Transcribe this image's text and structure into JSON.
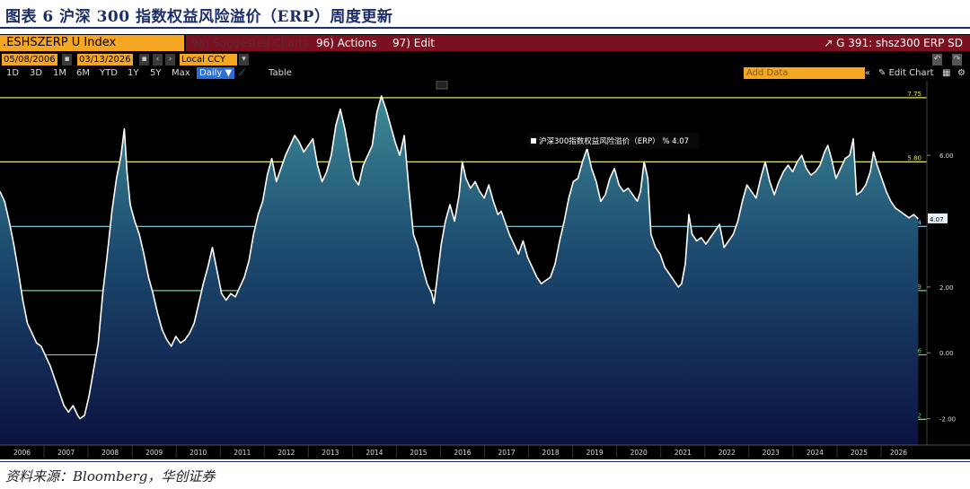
{
  "caption": "图表 6  沪深 300 指数权益风险溢价（ERP）周度更新",
  "source": "资料来源：Bloomberg，华创证券",
  "toolbar": {
    "ticker": ".ESHSZERP U Index",
    "suggested": "96) Suggested Charts",
    "actions": "96) Actions",
    "edit": "97) Edit",
    "right_title": "G 391: shsz300 ERP SD",
    "start_date": "05/08/2006",
    "end_date": "03/13/2026",
    "currency": "Local CCY",
    "ranges": [
      "1D",
      "3D",
      "1M",
      "6M",
      "YTD",
      "1Y",
      "5Y",
      "Max"
    ],
    "frequency": "Daily ▼",
    "table": "Table",
    "add_data": "Add Data",
    "edit_chart": "Edit Chart"
  },
  "colors": {
    "accent": "#f5a623",
    "bar_red": "#7a1020",
    "line_white": "#ffffff",
    "mean_line": "#87d4f0",
    "sd_yellow": "#e6e65a",
    "sd_green": "#6fdc6f",
    "caption_blue": "#1c2d6b"
  },
  "chart_data": {
    "type": "area",
    "title": "",
    "legend": "沪深300指数权益风险溢价（ERP） % 4.07",
    "legend_placement": "top-center",
    "last_value": "4.07",
    "ylim": [
      -2.8,
      8.1
    ],
    "xlim": [
      2006.0,
      2026.25
    ],
    "x_ticks": [
      "2006",
      "2007",
      "2008",
      "2009",
      "2010",
      "2011",
      "2012",
      "2013",
      "2014",
      "2015",
      "2016",
      "2017",
      "2018",
      "2019",
      "2020",
      "2021",
      "2022",
      "2023",
      "2024",
      "2025",
      "2026"
    ],
    "y_ticks": [
      {
        "value": 6.0,
        "label": "6.00"
      },
      {
        "value": 2.0,
        "label": "2.00"
      },
      {
        "value": 0.0,
        "label": "0.00"
      },
      {
        "value": -2.0,
        "label": "-2.00"
      }
    ],
    "bands": [
      {
        "value": 7.75,
        "label": "7.75",
        "kind": "+2SD"
      },
      {
        "value": 5.8,
        "label": "5.80",
        "kind": "+1SD"
      },
      {
        "value": 3.84,
        "label": "3.84",
        "kind": "mean"
      },
      {
        "value": 1.89,
        "label": "1.89",
        "kind": "-1SD"
      },
      {
        "value": -0.06,
        "label": "-0.06",
        "kind": "-2SD"
      },
      {
        "value": -2.02,
        "label": "-2.02",
        "kind": "-3SD"
      }
    ],
    "series": [
      {
        "values": [
          [
            2006.0,
            4.9
          ],
          [
            2006.1,
            4.6
          ],
          [
            2006.2,
            4.0
          ],
          [
            2006.3,
            3.3
          ],
          [
            2006.4,
            2.5
          ],
          [
            2006.5,
            1.6
          ],
          [
            2006.6,
            0.9
          ],
          [
            2006.7,
            0.6
          ],
          [
            2006.8,
            0.3
          ],
          [
            2006.9,
            0.2
          ],
          [
            2007.0,
            -0.1
          ],
          [
            2007.1,
            -0.4
          ],
          [
            2007.2,
            -0.8
          ],
          [
            2007.3,
            -1.2
          ],
          [
            2007.4,
            -1.6
          ],
          [
            2007.5,
            -1.8
          ],
          [
            2007.6,
            -1.6
          ],
          [
            2007.7,
            -1.9
          ],
          [
            2007.75,
            -2.0
          ],
          [
            2007.85,
            -1.9
          ],
          [
            2007.95,
            -1.3
          ],
          [
            2008.05,
            -0.5
          ],
          [
            2008.15,
            0.3
          ],
          [
            2008.25,
            1.8
          ],
          [
            2008.35,
            3.0
          ],
          [
            2008.45,
            4.3
          ],
          [
            2008.55,
            5.3
          ],
          [
            2008.65,
            6.0
          ],
          [
            2008.72,
            6.8
          ],
          [
            2008.78,
            5.5
          ],
          [
            2008.85,
            4.5
          ],
          [
            2008.95,
            4.0
          ],
          [
            2009.05,
            3.6
          ],
          [
            2009.15,
            3.0
          ],
          [
            2009.25,
            2.3
          ],
          [
            2009.35,
            1.8
          ],
          [
            2009.45,
            1.2
          ],
          [
            2009.55,
            0.7
          ],
          [
            2009.65,
            0.4
          ],
          [
            2009.75,
            0.2
          ],
          [
            2009.85,
            0.5
          ],
          [
            2009.95,
            0.3
          ],
          [
            2010.05,
            0.4
          ],
          [
            2010.15,
            0.6
          ],
          [
            2010.25,
            0.9
          ],
          [
            2010.35,
            1.5
          ],
          [
            2010.45,
            2.1
          ],
          [
            2010.55,
            2.6
          ],
          [
            2010.65,
            3.2
          ],
          [
            2010.75,
            2.5
          ],
          [
            2010.85,
            1.8
          ],
          [
            2010.95,
            1.6
          ],
          [
            2011.05,
            1.8
          ],
          [
            2011.15,
            1.7
          ],
          [
            2011.25,
            2.0
          ],
          [
            2011.35,
            2.3
          ],
          [
            2011.45,
            2.8
          ],
          [
            2011.55,
            3.6
          ],
          [
            2011.65,
            4.2
          ],
          [
            2011.75,
            4.6
          ],
          [
            2011.85,
            5.4
          ],
          [
            2011.95,
            5.9
          ],
          [
            2012.05,
            5.2
          ],
          [
            2012.15,
            5.6
          ],
          [
            2012.25,
            6.0
          ],
          [
            2012.35,
            6.3
          ],
          [
            2012.45,
            6.6
          ],
          [
            2012.55,
            6.4
          ],
          [
            2012.65,
            6.1
          ],
          [
            2012.75,
            6.3
          ],
          [
            2012.85,
            6.5
          ],
          [
            2012.95,
            5.7
          ],
          [
            2013.05,
            5.2
          ],
          [
            2013.15,
            5.5
          ],
          [
            2013.25,
            6.0
          ],
          [
            2013.35,
            6.9
          ],
          [
            2013.45,
            7.4
          ],
          [
            2013.55,
            6.8
          ],
          [
            2013.65,
            6.0
          ],
          [
            2013.75,
            5.3
          ],
          [
            2013.85,
            5.1
          ],
          [
            2013.95,
            5.7
          ],
          [
            2014.05,
            6.0
          ],
          [
            2014.15,
            6.3
          ],
          [
            2014.25,
            7.3
          ],
          [
            2014.35,
            7.8
          ],
          [
            2014.45,
            7.4
          ],
          [
            2014.55,
            6.9
          ],
          [
            2014.65,
            6.4
          ],
          [
            2014.75,
            6.0
          ],
          [
            2014.85,
            6.6
          ],
          [
            2014.95,
            5.0
          ],
          [
            2015.05,
            3.6
          ],
          [
            2015.15,
            3.2
          ],
          [
            2015.25,
            2.6
          ],
          [
            2015.35,
            2.1
          ],
          [
            2015.45,
            1.8
          ],
          [
            2015.5,
            1.5
          ],
          [
            2015.58,
            2.4
          ],
          [
            2015.66,
            3.3
          ],
          [
            2015.75,
            4.0
          ],
          [
            2015.85,
            4.5
          ],
          [
            2015.95,
            4.0
          ],
          [
            2016.05,
            4.8
          ],
          [
            2016.12,
            5.8
          ],
          [
            2016.2,
            5.3
          ],
          [
            2016.3,
            5.0
          ],
          [
            2016.4,
            5.2
          ],
          [
            2016.5,
            4.9
          ],
          [
            2016.6,
            4.7
          ],
          [
            2016.7,
            5.1
          ],
          [
            2016.8,
            4.6
          ],
          [
            2016.9,
            4.2
          ],
          [
            2016.97,
            4.3
          ],
          [
            2017.05,
            4.0
          ],
          [
            2017.15,
            3.6
          ],
          [
            2017.25,
            3.3
          ],
          [
            2017.35,
            3.0
          ],
          [
            2017.45,
            3.4
          ],
          [
            2017.55,
            2.9
          ],
          [
            2017.65,
            2.6
          ],
          [
            2017.75,
            2.3
          ],
          [
            2017.85,
            2.1
          ],
          [
            2017.95,
            2.2
          ],
          [
            2018.05,
            2.3
          ],
          [
            2018.15,
            2.7
          ],
          [
            2018.25,
            3.4
          ],
          [
            2018.35,
            4.0
          ],
          [
            2018.45,
            4.7
          ],
          [
            2018.55,
            5.2
          ],
          [
            2018.65,
            5.3
          ],
          [
            2018.75,
            5.8
          ],
          [
            2018.85,
            6.2
          ],
          [
            2018.95,
            5.6
          ],
          [
            2019.05,
            5.2
          ],
          [
            2019.15,
            4.6
          ],
          [
            2019.25,
            4.8
          ],
          [
            2019.35,
            5.3
          ],
          [
            2019.45,
            5.6
          ],
          [
            2019.55,
            5.1
          ],
          [
            2019.65,
            4.9
          ],
          [
            2019.75,
            5.0
          ],
          [
            2019.85,
            4.8
          ],
          [
            2019.95,
            4.6
          ],
          [
            2020.02,
            4.9
          ],
          [
            2020.1,
            5.8
          ],
          [
            2020.18,
            5.3
          ],
          [
            2020.25,
            3.6
          ],
          [
            2020.35,
            3.2
          ],
          [
            2020.45,
            3.0
          ],
          [
            2020.55,
            2.6
          ],
          [
            2020.65,
            2.4
          ],
          [
            2020.75,
            2.2
          ],
          [
            2020.85,
            2.0
          ],
          [
            2020.92,
            2.1
          ],
          [
            2021.0,
            2.7
          ],
          [
            2021.08,
            4.2
          ],
          [
            2021.15,
            3.6
          ],
          [
            2021.25,
            3.4
          ],
          [
            2021.35,
            3.5
          ],
          [
            2021.45,
            3.3
          ],
          [
            2021.55,
            3.5
          ],
          [
            2021.65,
            3.7
          ],
          [
            2021.75,
            3.9
          ],
          [
            2021.85,
            3.2
          ],
          [
            2021.95,
            3.4
          ],
          [
            2022.05,
            3.6
          ],
          [
            2022.15,
            4.0
          ],
          [
            2022.25,
            4.6
          ],
          [
            2022.35,
            5.1
          ],
          [
            2022.45,
            4.9
          ],
          [
            2022.55,
            4.7
          ],
          [
            2022.65,
            5.3
          ],
          [
            2022.75,
            5.8
          ],
          [
            2022.85,
            5.2
          ],
          [
            2022.95,
            4.8
          ],
          [
            2023.05,
            5.2
          ],
          [
            2023.15,
            5.5
          ],
          [
            2023.25,
            5.7
          ],
          [
            2023.35,
            5.5
          ],
          [
            2023.45,
            5.8
          ],
          [
            2023.55,
            6.0
          ],
          [
            2023.65,
            5.6
          ],
          [
            2023.75,
            5.4
          ],
          [
            2023.85,
            5.5
          ],
          [
            2023.95,
            5.7
          ],
          [
            2024.05,
            6.1
          ],
          [
            2024.12,
            6.3
          ],
          [
            2024.2,
            5.9
          ],
          [
            2024.3,
            5.3
          ],
          [
            2024.4,
            5.6
          ],
          [
            2024.5,
            5.9
          ],
          [
            2024.6,
            6.0
          ],
          [
            2024.68,
            6.5
          ],
          [
            2024.75,
            4.8
          ],
          [
            2024.85,
            4.9
          ],
          [
            2024.95,
            5.1
          ],
          [
            2025.05,
            5.5
          ],
          [
            2025.12,
            6.1
          ],
          [
            2025.2,
            5.7
          ],
          [
            2025.3,
            5.3
          ],
          [
            2025.4,
            4.9
          ],
          [
            2025.5,
            4.6
          ],
          [
            2025.6,
            4.4
          ],
          [
            2025.7,
            4.3
          ],
          [
            2025.8,
            4.2
          ],
          [
            2025.9,
            4.1
          ],
          [
            2026.0,
            4.2
          ],
          [
            2026.1,
            4.07
          ]
        ]
      }
    ]
  }
}
